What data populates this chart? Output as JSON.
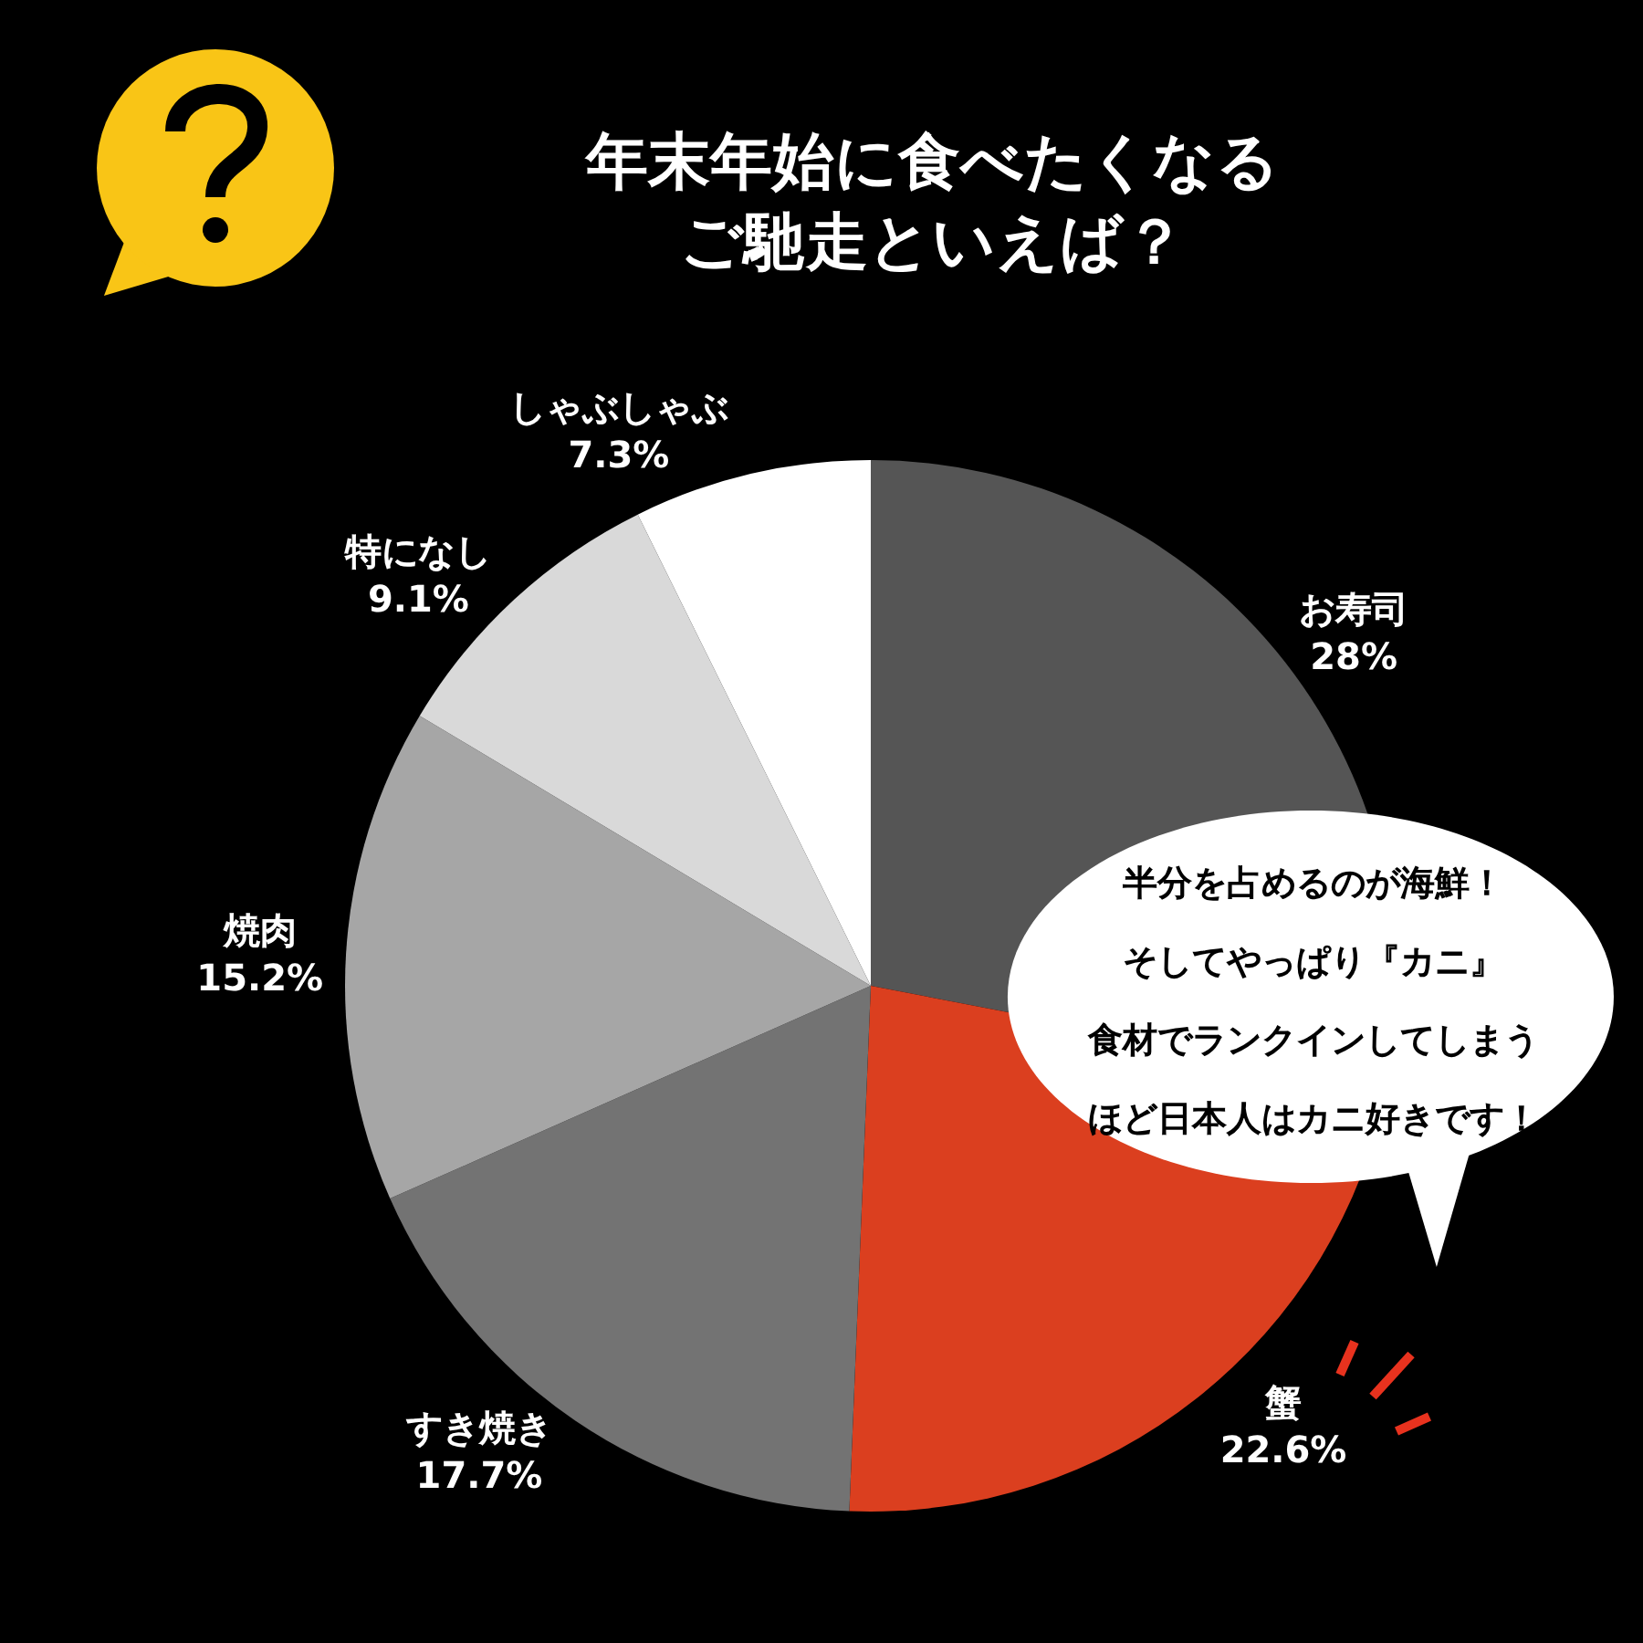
{
  "chart_data": {
    "type": "pie",
    "title": "年末年始に食べたくなるご馳走といえば？",
    "categories": [
      "お寿司",
      "蟹",
      "すき焼き",
      "焼肉",
      "特になし",
      "しゃぶしゃぶ"
    ],
    "values": [
      28,
      22.6,
      17.7,
      15.2,
      9.1,
      7.3
    ],
    "value_labels": [
      "28%",
      "22.6%",
      "17.7%",
      "15.2%",
      "9.1%",
      "7.3%"
    ],
    "colors": [
      "#555555",
      "#db3f1f",
      "#737373",
      "#a6a6a6",
      "#d9d9d9",
      "#ffffff"
    ],
    "annotations": [
      "半分を占めるのが海鮮！そしてやっぱり『カニ』食材でランクインしてしまうほど日本人はカニ好きです！"
    ],
    "legend": false
  }
}
